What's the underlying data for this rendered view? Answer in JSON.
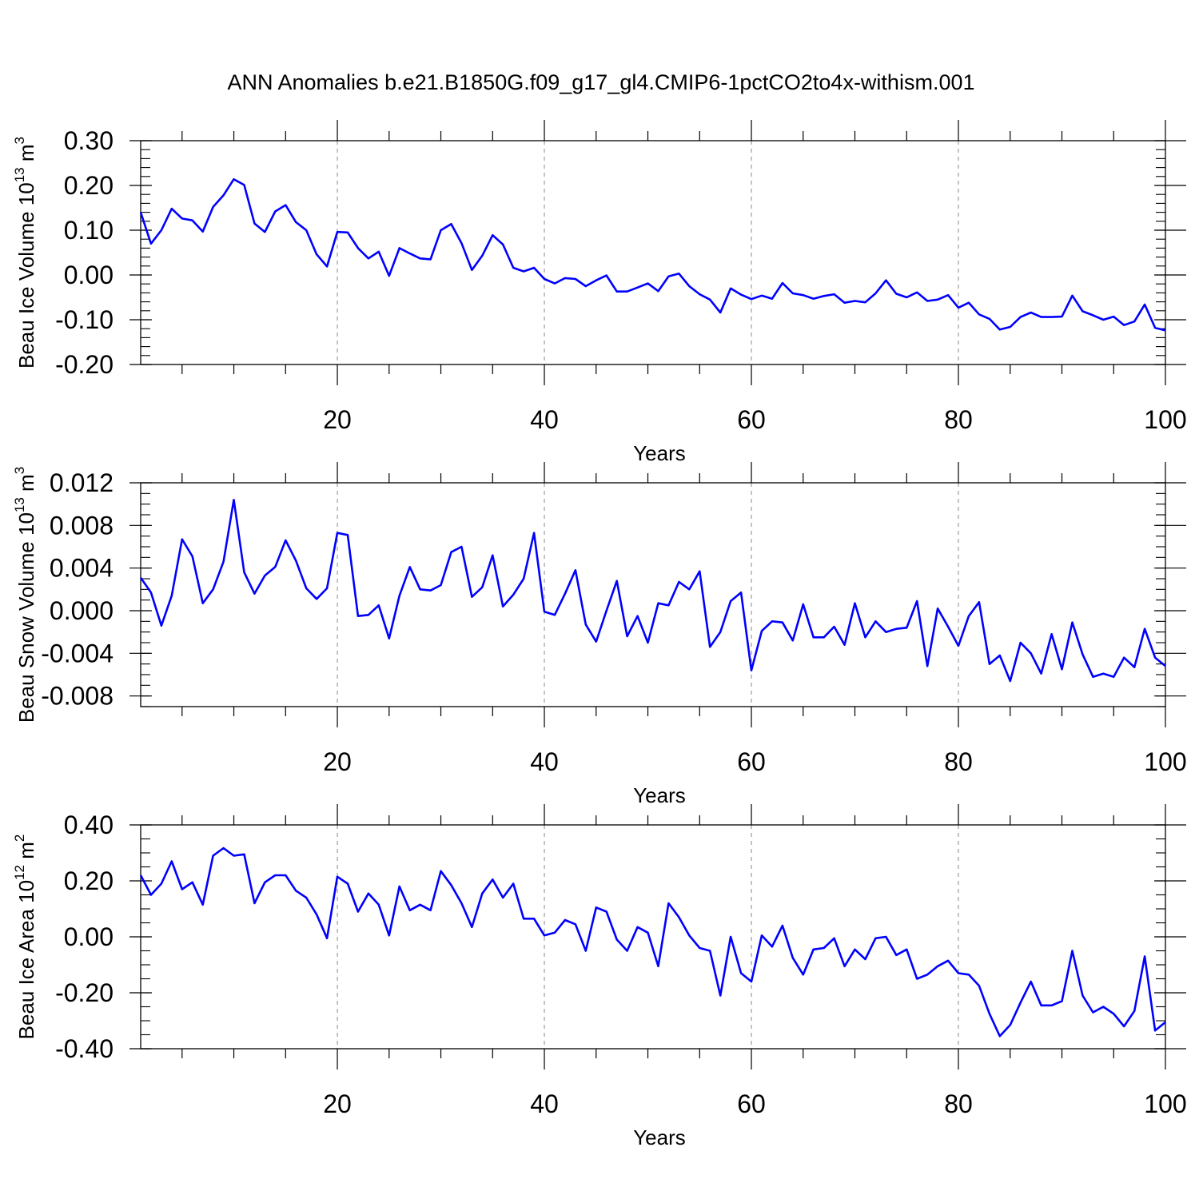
{
  "figure": {
    "title": "ANN Anomalies b.e21.B1850G.f09_g17_gl4.CMIP6-1pctCO2to4x-withism.001",
    "line_color": "#0000ff",
    "grid": "x-only dashed"
  },
  "chart_data": [
    {
      "type": "line",
      "xlabel": "Years",
      "ylabel": {
        "text": "Beau Ice Volume 10",
        "exp": "13",
        "unit": " m",
        "unit_exp": "3"
      },
      "xlim": [
        1,
        100
      ],
      "ylim": [
        -0.2,
        0.3
      ],
      "xticks": [
        20,
        40,
        60,
        80,
        100
      ],
      "xtick_labels": [
        "20",
        "40",
        "60",
        "80",
        "100"
      ],
      "yticks": [
        -0.2,
        -0.1,
        0.0,
        0.1,
        0.2,
        0.3
      ],
      "ytick_labels": [
        "-0.20",
        "-0.10",
        "0.00",
        "0.10",
        "0.20",
        "0.30"
      ],
      "yminor_step": 0.02,
      "series": [
        {
          "x": [
            1,
            2,
            3,
            4,
            5,
            6,
            7,
            8,
            9,
            10,
            11,
            12,
            13,
            14,
            15,
            16,
            17,
            18,
            19,
            20,
            21,
            22,
            23,
            24,
            25,
            26,
            27,
            28,
            29,
            30,
            31,
            32,
            33,
            34,
            35,
            36,
            37,
            38,
            39,
            40,
            41,
            42,
            43,
            44,
            45,
            46,
            47,
            48,
            49,
            50,
            51,
            52,
            53,
            54,
            55,
            56,
            57,
            58,
            59,
            60,
            61,
            62,
            63,
            64,
            65,
            66,
            67,
            68,
            69,
            70,
            71,
            72,
            73,
            74,
            75,
            76,
            77,
            78,
            79,
            80,
            81,
            82,
            83,
            84,
            85,
            86,
            87,
            88,
            89,
            90,
            91,
            92,
            93,
            94,
            95,
            96,
            97,
            98,
            99,
            100
          ],
          "values": [
            0.14,
            0.07,
            0.1,
            0.148,
            0.126,
            0.122,
            0.097,
            0.152,
            0.178,
            0.214,
            0.201,
            0.115,
            0.096,
            0.142,
            0.156,
            0.118,
            0.1,
            0.046,
            0.019,
            0.096,
            0.095,
            0.06,
            0.037,
            0.052,
            -0.002,
            0.06,
            0.048,
            0.037,
            0.035,
            0.1,
            0.114,
            0.071,
            0.011,
            0.043,
            0.089,
            0.068,
            0.016,
            0.008,
            0.016,
            -0.009,
            -0.019,
            -0.007,
            -0.009,
            -0.025,
            -0.012,
            -0.001,
            -0.037,
            -0.037,
            -0.028,
            -0.019,
            -0.036,
            -0.003,
            0.003,
            -0.025,
            -0.043,
            -0.055,
            -0.084,
            -0.03,
            -0.044,
            -0.054,
            -0.046,
            -0.053,
            -0.018,
            -0.041,
            -0.045,
            -0.053,
            -0.047,
            -0.043,
            -0.062,
            -0.058,
            -0.061,
            -0.041,
            -0.012,
            -0.042,
            -0.05,
            -0.039,
            -0.058,
            -0.055,
            -0.045,
            -0.073,
            -0.062,
            -0.088,
            -0.098,
            -0.122,
            -0.116,
            -0.094,
            -0.084,
            -0.094,
            -0.094,
            -0.093,
            -0.046,
            -0.081,
            -0.09,
            -0.1,
            -0.093,
            -0.112,
            -0.104,
            -0.066,
            -0.118,
            -0.124
          ]
        }
      ]
    },
    {
      "type": "line",
      "xlabel": "Years",
      "ylabel": {
        "text": "Beau Snow Volume 10",
        "exp": "13",
        "unit": " m",
        "unit_exp": "3"
      },
      "xlim": [
        1,
        100
      ],
      "ylim": [
        -0.009,
        0.012
      ],
      "xticks": [
        20,
        40,
        60,
        80,
        100
      ],
      "xtick_labels": [
        "20",
        "40",
        "60",
        "80",
        "100"
      ],
      "yticks": [
        -0.008,
        -0.004,
        0.0,
        0.004,
        0.008,
        0.012
      ],
      "ytick_labels": [
        "-0.008",
        "-0.004",
        "0.000",
        "0.004",
        "0.008",
        "0.012"
      ],
      "yminor_step": 0.001,
      "series": [
        {
          "x": [
            1,
            2,
            3,
            4,
            5,
            6,
            7,
            8,
            9,
            10,
            11,
            12,
            13,
            14,
            15,
            16,
            17,
            18,
            19,
            20,
            21,
            22,
            23,
            24,
            25,
            26,
            27,
            28,
            29,
            30,
            31,
            32,
            33,
            34,
            35,
            36,
            37,
            38,
            39,
            40,
            41,
            42,
            43,
            44,
            45,
            46,
            47,
            48,
            49,
            50,
            51,
            52,
            53,
            54,
            55,
            56,
            57,
            58,
            59,
            60,
            61,
            62,
            63,
            64,
            65,
            66,
            67,
            68,
            69,
            70,
            71,
            72,
            73,
            74,
            75,
            76,
            77,
            78,
            79,
            80,
            81,
            82,
            83,
            84,
            85,
            86,
            87,
            88,
            89,
            90,
            91,
            92,
            93,
            94,
            95,
            96,
            97,
            98,
            99,
            100
          ],
          "values": [
            0.0031,
            0.0017,
            -0.0014,
            0.0014,
            0.0067,
            0.0051,
            0.0007,
            0.002,
            0.0046,
            0.0104,
            0.0036,
            0.0016,
            0.0033,
            0.0041,
            0.0066,
            0.0047,
            0.0021,
            0.0011,
            0.0021,
            0.0073,
            0.0071,
            -0.0005,
            -0.0004,
            0.0005,
            -0.0026,
            0.0014,
            0.0041,
            0.002,
            0.0019,
            0.0024,
            0.0055,
            0.006,
            0.0013,
            0.0022,
            0.0052,
            0.0004,
            0.0015,
            0.003,
            0.0073,
            -0.0001,
            -0.0004,
            0.0016,
            0.0038,
            -0.0013,
            -0.0029,
            0.0,
            0.0028,
            -0.0024,
            -0.0005,
            -0.003,
            0.0007,
            0.0005,
            0.0027,
            0.002,
            0.0037,
            -0.0034,
            -0.002,
            0.0009,
            0.0017,
            -0.0056,
            -0.0019,
            -0.001,
            -0.0011,
            -0.0028,
            0.0006,
            -0.0025,
            -0.0025,
            -0.0015,
            -0.0032,
            0.0007,
            -0.0025,
            -0.001,
            -0.002,
            -0.0017,
            -0.0016,
            0.0009,
            -0.0052,
            0.0002,
            -0.0015,
            -0.0033,
            -0.0005,
            0.0008,
            -0.005,
            -0.0042,
            -0.0066,
            -0.003,
            -0.004,
            -0.0059,
            -0.0022,
            -0.0055,
            -0.0011,
            -0.0041,
            -0.0062,
            -0.0059,
            -0.0062,
            -0.0044,
            -0.0053,
            -0.0017,
            -0.0044,
            -0.0052
          ]
        }
      ]
    },
    {
      "type": "line",
      "xlabel": "Years",
      "ylabel": {
        "text": "Beau Ice Area 10",
        "exp": "12",
        "unit": " m",
        "unit_exp": "2"
      },
      "xlim": [
        1,
        100
      ],
      "ylim": [
        -0.4,
        0.4
      ],
      "xticks": [
        20,
        40,
        60,
        80,
        100
      ],
      "xtick_labels": [
        "20",
        "40",
        "60",
        "80",
        "100"
      ],
      "yticks": [
        -0.4,
        -0.2,
        0.0,
        0.2,
        0.4
      ],
      "ytick_labels": [
        "-0.40",
        "-0.20",
        "0.00",
        "0.20",
        "0.40"
      ],
      "yminor_step": 0.05,
      "series": [
        {
          "x": [
            1,
            2,
            3,
            4,
            5,
            6,
            7,
            8,
            9,
            10,
            11,
            12,
            13,
            14,
            15,
            16,
            17,
            18,
            19,
            20,
            21,
            22,
            23,
            24,
            25,
            26,
            27,
            28,
            29,
            30,
            31,
            32,
            33,
            34,
            35,
            36,
            37,
            38,
            39,
            40,
            41,
            42,
            43,
            44,
            45,
            46,
            47,
            48,
            49,
            50,
            51,
            52,
            53,
            54,
            55,
            56,
            57,
            58,
            59,
            60,
            61,
            62,
            63,
            64,
            65,
            66,
            67,
            68,
            69,
            70,
            71,
            72,
            73,
            74,
            75,
            76,
            77,
            78,
            79,
            80,
            81,
            82,
            83,
            84,
            85,
            86,
            87,
            88,
            89,
            90,
            91,
            92,
            93,
            94,
            95,
            96,
            97,
            98,
            99,
            100
          ],
          "values": [
            0.22,
            0.15,
            0.19,
            0.27,
            0.17,
            0.195,
            0.115,
            0.29,
            0.317,
            0.29,
            0.295,
            0.12,
            0.195,
            0.22,
            0.22,
            0.165,
            0.14,
            0.08,
            -0.005,
            0.215,
            0.19,
            0.09,
            0.155,
            0.115,
            0.005,
            0.18,
            0.095,
            0.115,
            0.095,
            0.235,
            0.185,
            0.12,
            0.035,
            0.155,
            0.205,
            0.14,
            0.19,
            0.065,
            0.065,
            0.005,
            0.015,
            0.06,
            0.045,
            -0.05,
            0.105,
            0.09,
            -0.01,
            -0.05,
            0.035,
            0.015,
            -0.105,
            0.12,
            0.07,
            0.005,
            -0.04,
            -0.05,
            -0.21,
            0.0,
            -0.13,
            -0.16,
            0.005,
            -0.035,
            0.04,
            -0.075,
            -0.135,
            -0.045,
            -0.04,
            -0.005,
            -0.105,
            -0.045,
            -0.08,
            -0.005,
            0.0,
            -0.065,
            -0.045,
            -0.15,
            -0.135,
            -0.105,
            -0.085,
            -0.13,
            -0.135,
            -0.175,
            -0.275,
            -0.355,
            -0.315,
            -0.235,
            -0.16,
            -0.245,
            -0.245,
            -0.23,
            -0.05,
            -0.21,
            -0.27,
            -0.25,
            -0.275,
            -0.32,
            -0.265,
            -0.07,
            -0.335,
            -0.305
          ]
        }
      ]
    }
  ]
}
